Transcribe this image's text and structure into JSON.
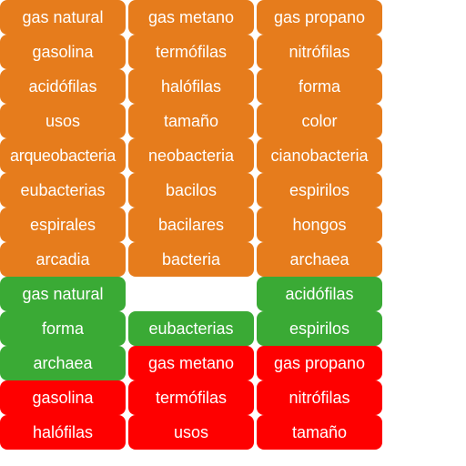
{
  "colors": {
    "orange": "#e67c1c",
    "green": "#3aaa35",
    "red": "#fe0000"
  },
  "rows": [
    {
      "tiles": [
        {
          "label": "gas natural",
          "color": "orange"
        },
        {
          "label": "gas metano",
          "color": "orange"
        },
        {
          "label": "gas propano",
          "color": "orange"
        }
      ]
    },
    {
      "tiles": [
        {
          "label": "gasolina",
          "color": "orange"
        },
        {
          "label": "termófilas",
          "color": "orange"
        },
        {
          "label": "nitrófilas",
          "color": "orange"
        }
      ]
    },
    {
      "tiles": [
        {
          "label": "acidófilas",
          "color": "orange"
        },
        {
          "label": "halófilas",
          "color": "orange"
        },
        {
          "label": "forma",
          "color": "orange"
        }
      ]
    },
    {
      "tiles": [
        {
          "label": "usos",
          "color": "orange"
        },
        {
          "label": "tamaño",
          "color": "orange"
        },
        {
          "label": "color",
          "color": "orange"
        }
      ]
    },
    {
      "tiles": [
        {
          "label": "arqueobacteria",
          "color": "orange"
        },
        {
          "label": "neobacteria",
          "color": "orange"
        },
        {
          "label": "cianobacteria",
          "color": "orange"
        }
      ]
    },
    {
      "tiles": [
        {
          "label": "eubacterias",
          "color": "orange"
        },
        {
          "label": "bacilos",
          "color": "orange"
        },
        {
          "label": "espirilos",
          "color": "orange"
        }
      ]
    },
    {
      "tiles": [
        {
          "label": "espirales",
          "color": "orange"
        },
        {
          "label": "bacilares",
          "color": "orange"
        },
        {
          "label": "hongos",
          "color": "orange"
        }
      ]
    },
    {
      "tiles": [
        {
          "label": "arcadia",
          "color": "orange"
        },
        {
          "label": "bacteria",
          "color": "orange"
        },
        {
          "label": "archaea",
          "color": "orange"
        }
      ]
    },
    {
      "tiles": [
        {
          "label": "gas natural",
          "color": "green"
        },
        {
          "label": "",
          "color": "empty"
        },
        {
          "label": "acidófilas",
          "color": "green"
        }
      ]
    },
    {
      "tiles": [
        {
          "label": "forma",
          "color": "green"
        },
        {
          "label": "eubacterias",
          "color": "green"
        },
        {
          "label": "espirilos",
          "color": "green"
        }
      ]
    },
    {
      "tiles": [
        {
          "label": "archaea",
          "color": "green"
        },
        {
          "label": "gas metano",
          "color": "red"
        },
        {
          "label": "gas propano",
          "color": "red"
        }
      ]
    },
    {
      "tiles": [
        {
          "label": "gasolina",
          "color": "red"
        },
        {
          "label": "termófilas",
          "color": "red"
        },
        {
          "label": "nitrófilas",
          "color": "red"
        }
      ]
    },
    {
      "tiles": [
        {
          "label": "halófilas",
          "color": "red"
        },
        {
          "label": "usos",
          "color": "red"
        },
        {
          "label": "tamaño",
          "color": "red"
        }
      ]
    }
  ]
}
